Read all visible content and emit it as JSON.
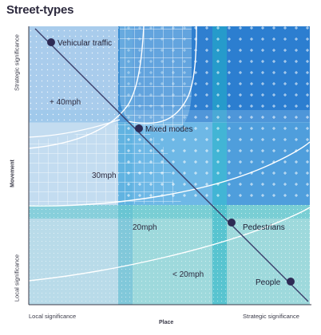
{
  "title": "Street-types",
  "axes": {
    "y_title": "Movement",
    "y_top": "Strategic significance",
    "y_bottom": "Local significance",
    "x_title": "Place",
    "x_left": "Local significance",
    "x_right": "Strategic significance"
  },
  "zones": [
    {
      "label": "+ 40mph"
    },
    {
      "label": "30mph"
    },
    {
      "label": "20mph"
    },
    {
      "label": "< 20mph"
    }
  ],
  "nodes": [
    {
      "label": "Vehicular traffic"
    },
    {
      "label": "Mixed modes"
    },
    {
      "label": "Pedestrians"
    },
    {
      "label": "People"
    }
  ],
  "colors": {
    "node_dot": "#2e2b55",
    "diagonal": "#3b3f6b",
    "deep_blue": "#2f7fd0",
    "mid_blue": "#6eb8e6",
    "pale_blue": "#a9ccec",
    "teal": "#35bcc8",
    "light_teal": "#9ed9dc"
  }
}
